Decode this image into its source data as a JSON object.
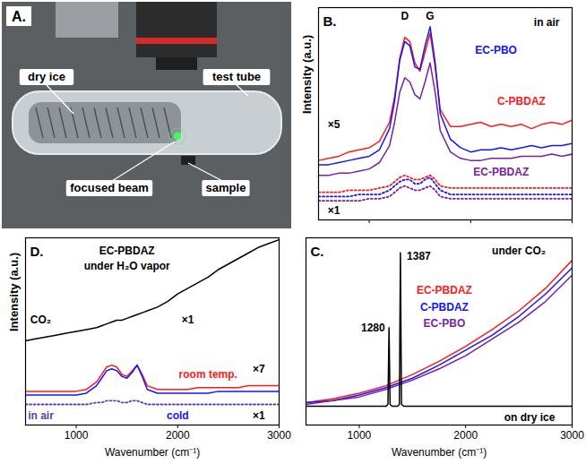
{
  "photo": {
    "panel": "A.",
    "labels": [
      "dry ice",
      "test tube",
      "focused beam",
      "sample"
    ]
  },
  "chart_data": [
    {
      "type": "line",
      "panel": "B.",
      "ylabel": "Intensity (a.u.)",
      "xlim": [
        500,
        3000
      ],
      "xticks": [
        1000,
        2000,
        3000
      ],
      "ylim": [
        0,
        100
      ],
      "yticks": [],
      "tick_labels": false,
      "grid": false,
      "x": [
        500,
        600,
        700,
        800,
        900,
        1000,
        1100,
        1200,
        1250,
        1300,
        1350,
        1400,
        1450,
        1500,
        1550,
        1600,
        1650,
        1700,
        1800,
        1900,
        2000,
        2100,
        2200,
        2300,
        2400,
        2500,
        2600,
        2700,
        2800,
        2900,
        3000
      ],
      "series": [
        {
          "name": "C-PBDAZ",
          "color": "#ff1a1a",
          "line_style": "solid",
          "values": [
            28,
            29,
            30,
            32,
            33,
            34,
            37,
            46,
            58,
            76,
            86,
            84,
            74,
            70,
            79,
            88,
            72,
            52,
            44,
            44,
            45,
            46,
            44,
            45,
            44,
            45,
            43,
            45,
            46,
            45,
            47
          ]
        },
        {
          "name": "EC-PBO",
          "color": "#1414ff",
          "line_style": "solid",
          "values": [
            26,
            26,
            27,
            28,
            29,
            30,
            33,
            43,
            56,
            75,
            84,
            82,
            72,
            71,
            82,
            91,
            74,
            50,
            38,
            34,
            32,
            33,
            33,
            34,
            33,
            34,
            35,
            34,
            35,
            35,
            36
          ]
        },
        {
          "name": "EC-PBDAZ",
          "color": "#7a1fa2",
          "line_style": "solid",
          "values": [
            21,
            21,
            22,
            22,
            23,
            24,
            27,
            35,
            46,
            60,
            67,
            65,
            59,
            57,
            65,
            74,
            60,
            42,
            32,
            29,
            28,
            28,
            29,
            29,
            29,
            30,
            30,
            30,
            31,
            30,
            31
          ]
        },
        {
          "name": "C-PBDAZ",
          "color": "#ff1a1a",
          "line_style": "dotted",
          "values": [
            13,
            13,
            13,
            14,
            14,
            14,
            15,
            16,
            18,
            20,
            21,
            20,
            19,
            19,
            20,
            21,
            19,
            16,
            15,
            15,
            15,
            15,
            15,
            15,
            15,
            15,
            15,
            15,
            15,
            15,
            15
          ]
        },
        {
          "name": "EC-PBO",
          "color": "#1414ff",
          "line_style": "dotted",
          "values": [
            11,
            11,
            11,
            11,
            12,
            12,
            12,
            14,
            16,
            18,
            19,
            19,
            17,
            17,
            19,
            20,
            17,
            14,
            12,
            12,
            12,
            12,
            12,
            12,
            12,
            12,
            12,
            12,
            12,
            12,
            12
          ]
        },
        {
          "name": "EC-PBDAZ",
          "color": "#7a1fa2",
          "line_style": "dotted",
          "values": [
            9,
            9,
            9,
            9,
            9,
            10,
            10,
            11,
            13,
            15,
            16,
            15,
            14,
            14,
            15,
            16,
            14,
            11,
            10,
            10,
            10,
            10,
            10,
            10,
            10,
            10,
            10,
            10,
            10,
            10,
            10
          ]
        }
      ],
      "annotations": [
        {
          "text": "D",
          "x": 1350,
          "y": 96
        },
        {
          "text": "G",
          "x": 1600,
          "y": 96
        },
        {
          "text": "in air",
          "x": 2750,
          "y": 93
        },
        {
          "text": "EC-PBO",
          "x": 2250,
          "y": 80
        },
        {
          "text": "C-PBDAZ",
          "x": 2500,
          "y": 56
        },
        {
          "text": "EC-PBDAZ",
          "x": 2300,
          "y": 22.5
        },
        {
          "text": "×5",
          "x": 650,
          "y": 45
        },
        {
          "text": "×1",
          "x": 650,
          "y": 4.5
        }
      ]
    },
    {
      "type": "line",
      "panel": "C.",
      "xlabel": "Wavenumber (cm⁻¹)",
      "xlim": [
        500,
        3000
      ],
      "xticks": [
        1000,
        2000,
        3000
      ],
      "ylim": [
        0,
        100
      ],
      "yticks": [],
      "tick_labels": "x",
      "grid": false,
      "x": [
        500,
        750,
        1000,
        1250,
        1500,
        1750,
        2000,
        2250,
        2500,
        2750,
        3000
      ],
      "series": [
        {
          "name": "EC-PBDAZ",
          "color": "#ff1a1a",
          "line_style": "solid",
          "values": [
            12,
            14,
            17,
            21,
            27,
            34,
            42,
            51,
            61,
            73,
            88
          ]
        },
        {
          "name": "C-PBDAZ",
          "color": "#1414ff",
          "line_style": "solid",
          "values": [
            12,
            13,
            16,
            20,
            25,
            32,
            40,
            48,
            58,
            70,
            84
          ]
        },
        {
          "name": "EC-PBO",
          "color": "#7a1fa2",
          "line_style": "solid",
          "values": [
            11,
            13,
            15,
            19,
            24,
            30,
            37,
            46,
            55,
            66,
            80
          ]
        },
        {
          "name": "on dry ice",
          "color": "#000000",
          "line_style": "solid",
          "x": [
            500,
            800,
            1100,
            1250,
            1270,
            1280,
            1290,
            1310,
            1360,
            1377,
            1387,
            1397,
            1420,
            1700,
            2000,
            2500,
            3000
          ],
          "values": [
            10,
            10,
            10,
            10,
            11,
            52,
            11,
            10,
            10,
            11,
            92,
            11,
            10,
            10,
            10,
            10,
            10
          ]
        }
      ],
      "annotations": [
        {
          "text": "under CO₂",
          "x": 2500,
          "y": 93
        },
        {
          "text": "1387",
          "x": 1560,
          "y": 90
        },
        {
          "text": "1280",
          "x": 1130,
          "y": 52
        },
        {
          "text": "EC-PBDAZ",
          "x": 1800,
          "y": 72
        },
        {
          "text": "C-PBDAZ",
          "x": 1800,
          "y": 63
        },
        {
          "text": "EC-PBO",
          "x": 1800,
          "y": 54
        },
        {
          "text": "on dry ice",
          "x": 2600,
          "y": 4
        }
      ]
    },
    {
      "type": "line",
      "panel": "D.",
      "ylabel": "Intensity (a.u.)",
      "xlabel": "Wavenumber (cm⁻¹)",
      "xlim": [
        500,
        3000
      ],
      "xticks": [
        1000,
        2000,
        3000
      ],
      "ylim": [
        0,
        100
      ],
      "yticks": [],
      "tick_labels": "x",
      "grid": false,
      "x": [
        500,
        600,
        700,
        800,
        900,
        1000,
        1100,
        1200,
        1250,
        1300,
        1350,
        1400,
        1450,
        1500,
        1550,
        1600,
        1650,
        1700,
        1800,
        1900,
        2000,
        2100,
        2200,
        2300,
        2400,
        2500,
        2600,
        2700,
        2800,
        2900,
        3000
      ],
      "series": [
        {
          "name": "CO₂",
          "color": "#000000",
          "line_style": "solid",
          "values": [
            45,
            46,
            47,
            48,
            49,
            50,
            51,
            52,
            53,
            54,
            55,
            56,
            56,
            57,
            58,
            59,
            60,
            61,
            63,
            66,
            70,
            73,
            76,
            79,
            83,
            86,
            89,
            92,
            95,
            97,
            99
          ]
        },
        {
          "name": "room temp.",
          "color": "#ff1a1a",
          "line_style": "solid",
          "values": [
            18,
            18,
            18,
            18,
            18,
            18,
            19,
            23,
            27,
            31,
            32,
            31,
            27,
            26,
            29,
            32,
            27,
            21,
            19,
            19,
            19,
            19,
            20,
            20,
            20,
            20,
            20,
            21,
            21,
            21,
            21
          ]
        },
        {
          "name": "cold",
          "color": "#1414ff",
          "line_style": "solid",
          "values": [
            16,
            16,
            16,
            16,
            16,
            16,
            17,
            21,
            25,
            29,
            30,
            29,
            26,
            25,
            28,
            32,
            26,
            19,
            17,
            17,
            17,
            17,
            17,
            17,
            18,
            18,
            18,
            18,
            18,
            18,
            18
          ]
        },
        {
          "name": "in air",
          "color": "#5a3fb0",
          "line_style": "dotted",
          "values": [
            11,
            11,
            11,
            11,
            11,
            11,
            11,
            12,
            12,
            13,
            13,
            13,
            12,
            12,
            13,
            13,
            12,
            11,
            11,
            11,
            11,
            11,
            11,
            11,
            11,
            11,
            11,
            11,
            11,
            11,
            11
          ]
        }
      ],
      "annotations": [
        {
          "text": "EC-PBDAZ",
          "x": 1500,
          "y": 93
        },
        {
          "text": "under H₂O vapor",
          "x": 1500,
          "y": 85
        },
        {
          "text": "CO₂",
          "x": 650,
          "y": 56
        },
        {
          "text": "×1",
          "x": 2100,
          "y": 56
        },
        {
          "text": "×7",
          "x": 2800,
          "y": 30
        },
        {
          "text": "room temp.",
          "x": 2300,
          "y": 27
        },
        {
          "text": "cold",
          "x": 2000,
          "y": 5
        },
        {
          "text": "in air",
          "x": 650,
          "y": 5
        },
        {
          "text": "×1",
          "x": 2800,
          "y": 5
        }
      ]
    }
  ]
}
